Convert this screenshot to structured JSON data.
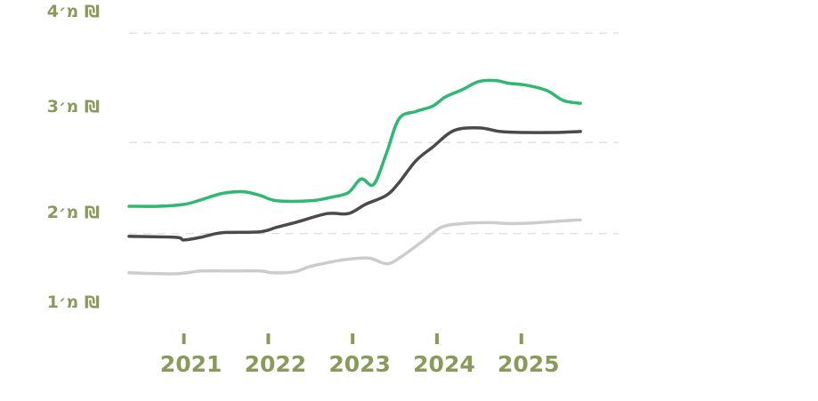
{
  "chart_data": {
    "type": "line",
    "x_ticks": [
      2021,
      2022,
      2023,
      2024,
      2025
    ],
    "xlim": [
      2020.35,
      2026.1
    ],
    "ylim": [
      0.8,
      4.0
    ],
    "y_ticks": [
      1,
      2,
      3,
      4
    ],
    "y_tick_labels": [
      "1מ׳ ₪",
      "2מ׳ ₪",
      "3מ׳ ₪",
      "4מ׳ ₪"
    ],
    "grid": true,
    "series": [
      {
        "color": "#2eb872",
        "x": [
          2020.35,
          2020.7,
          2021.0,
          2021.2,
          2021.45,
          2021.7,
          2021.9,
          2022.1,
          2022.5,
          2022.75,
          2022.95,
          2023.1,
          2023.25,
          2023.4,
          2023.55,
          2023.75,
          2023.95,
          2024.1,
          2024.3,
          2024.5,
          2024.7,
          2024.85,
          2025.05,
          2025.3,
          2025.5,
          2025.7
        ],
        "y": [
          2.0,
          2.0,
          2.02,
          2.07,
          2.14,
          2.16,
          2.12,
          2.06,
          2.06,
          2.1,
          2.15,
          2.3,
          2.24,
          2.58,
          2.96,
          3.04,
          3.1,
          3.2,
          3.28,
          3.37,
          3.38,
          3.35,
          3.33,
          3.27,
          3.16,
          3.13
        ]
      },
      {
        "color": "#4a4a4a",
        "x": [
          2020.35,
          2020.9,
          2021.0,
          2021.2,
          2021.45,
          2021.9,
          2022.1,
          2022.35,
          2022.7,
          2022.95,
          2023.15,
          2023.4,
          2023.55,
          2023.75,
          2023.95,
          2024.2,
          2024.5,
          2024.75,
          2025.0,
          2025.4,
          2025.7
        ],
        "y": [
          1.67,
          1.66,
          1.63,
          1.66,
          1.71,
          1.72,
          1.77,
          1.83,
          1.92,
          1.92,
          2.02,
          2.12,
          2.26,
          2.5,
          2.65,
          2.83,
          2.86,
          2.82,
          2.81,
          2.81,
          2.82
        ]
      },
      {
        "color": "#cccccc",
        "x": [
          2020.35,
          2020.9,
          2021.2,
          2021.5,
          2021.9,
          2022.05,
          2022.3,
          2022.5,
          2022.75,
          2022.95,
          2023.2,
          2023.4,
          2023.55,
          2023.85,
          2024.05,
          2024.3,
          2024.6,
          2024.9,
          2025.2,
          2025.5,
          2025.7
        ],
        "y": [
          1.27,
          1.26,
          1.29,
          1.29,
          1.29,
          1.27,
          1.28,
          1.34,
          1.39,
          1.42,
          1.43,
          1.37,
          1.43,
          1.63,
          1.77,
          1.81,
          1.82,
          1.81,
          1.82,
          1.84,
          1.85
        ]
      }
    ]
  }
}
